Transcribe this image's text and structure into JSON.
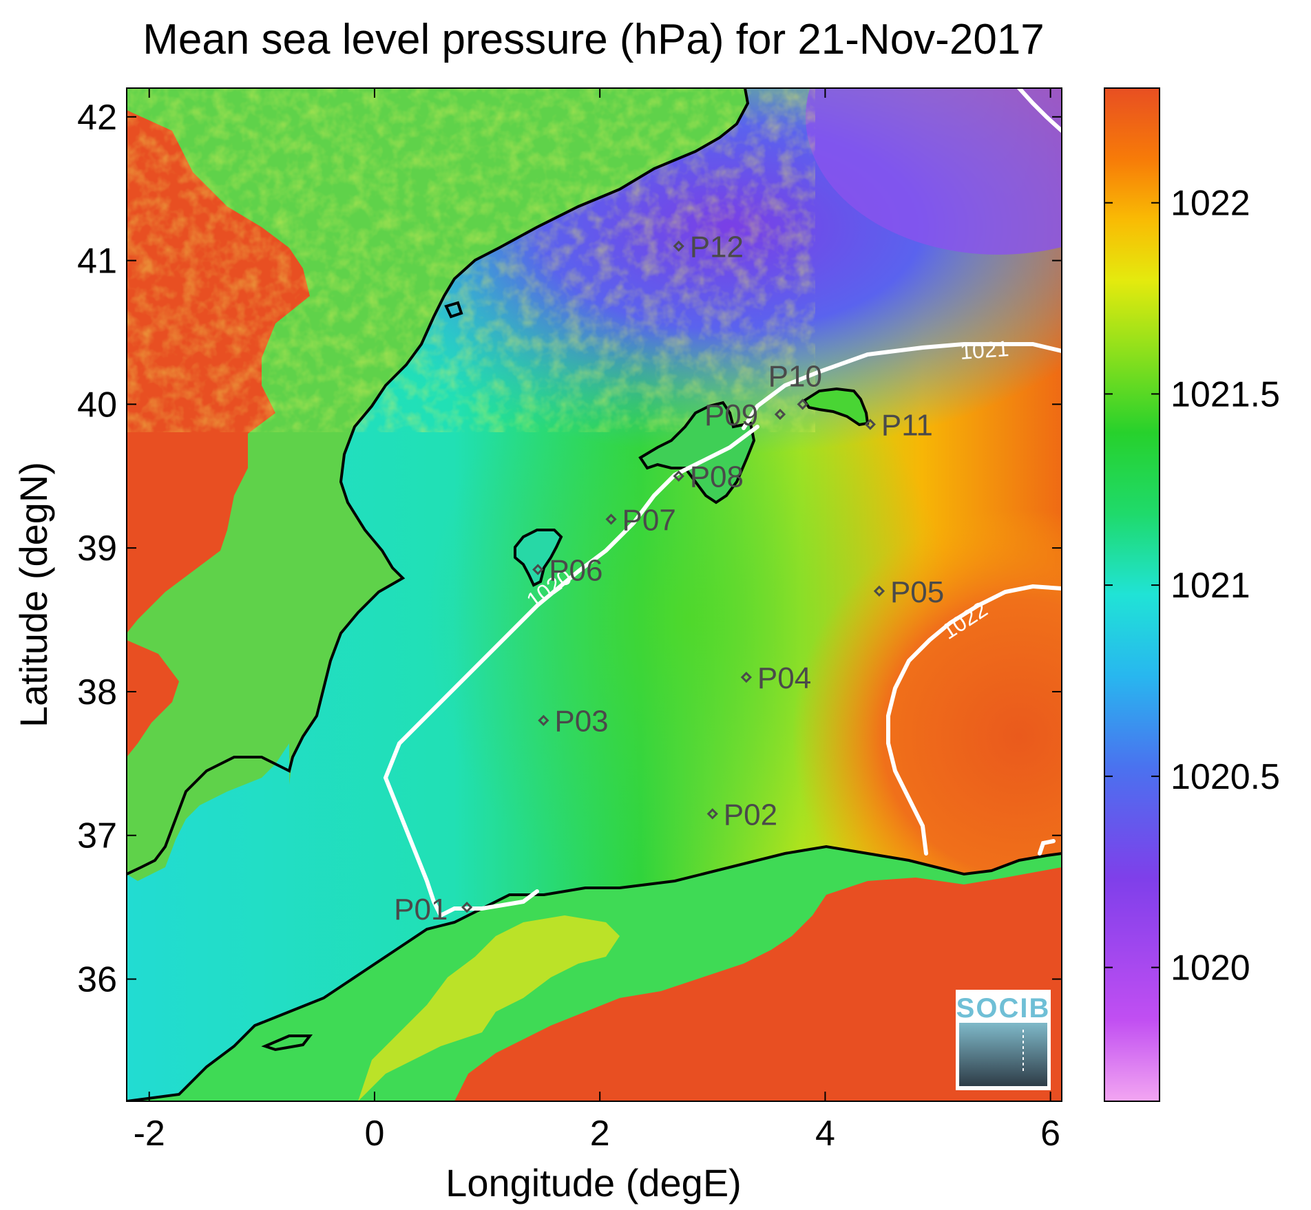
{
  "title": "Mean sea level pressure (hPa) for 21-Nov-2017",
  "chart_data": {
    "type": "heatmap",
    "title": "Mean sea level pressure (hPa) for 21-Nov-2017",
    "xlabel": "Longitude (degE)",
    "ylabel": "Latitude (degN)",
    "xlim": [
      -2.2,
      6.1
    ],
    "ylim": [
      35.15,
      42.2
    ],
    "x_ticks": [
      "-2",
      "0",
      "2",
      "4",
      "6"
    ],
    "y_ticks": [
      "42",
      "41",
      "40",
      "39",
      "38",
      "37",
      "36"
    ],
    "colorbar": {
      "range": [
        1019.65,
        1022.3
      ],
      "ticks": [
        "1022",
        "1021.5",
        "1021",
        "1020.5",
        "1020"
      ],
      "colormap": [
        "#f3a6f2",
        "#c14ff2",
        "#7f3fea",
        "#4a72ef",
        "#28b7ef",
        "#20e3d6",
        "#1fda6b",
        "#27d12c",
        "#8ee01c",
        "#e4ea0e",
        "#f9bb04",
        "#f77b08",
        "#e84f22"
      ]
    },
    "contours": [
      {
        "level": "1020",
        "label": "1020"
      },
      {
        "level": "1021",
        "label": "1021"
      },
      {
        "level": "1022",
        "label": "1022"
      }
    ],
    "stations": [
      {
        "id": "P01",
        "lon": 0.82,
        "lat": 36.5
      },
      {
        "id": "P02",
        "lon": 3.0,
        "lat": 37.15
      },
      {
        "id": "P03",
        "lon": 1.5,
        "lat": 37.8
      },
      {
        "id": "P04",
        "lon": 3.3,
        "lat": 38.1
      },
      {
        "id": "P05",
        "lon": 4.48,
        "lat": 38.7
      },
      {
        "id": "P06",
        "lon": 1.45,
        "lat": 38.85
      },
      {
        "id": "P07",
        "lon": 2.1,
        "lat": 39.2
      },
      {
        "id": "P08",
        "lon": 2.7,
        "lat": 39.5
      },
      {
        "id": "P09",
        "lon": 3.6,
        "lat": 39.93
      },
      {
        "id": "P10",
        "lon": 3.8,
        "lat": 40.0
      },
      {
        "id": "P11",
        "lon": 4.4,
        "lat": 39.86
      },
      {
        "id": "P12",
        "lon": 2.7,
        "lat": 41.1
      }
    ]
  },
  "logo": {
    "text": "SOCIB"
  }
}
